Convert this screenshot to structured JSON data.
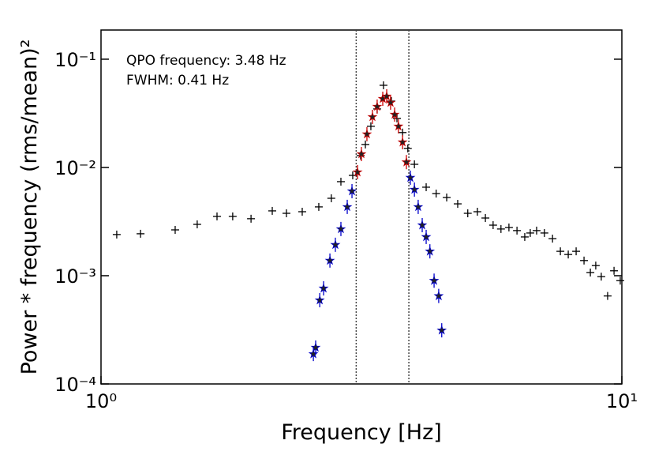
{
  "chart_data": {
    "type": "scatter",
    "xlabel": "Frequency [Hz]",
    "ylabel": "Power * frequency (rms/mean)²",
    "annotations": [
      "QPO frequency: 3.48 Hz",
      "FWHM: 0.41 Hz"
    ],
    "log_x": true,
    "log_y": true,
    "xlim": [
      1,
      10
    ],
    "ylim": [
      0.0001,
      0.186
    ],
    "xticks": [
      {
        "value": 1,
        "label": "10⁰"
      },
      {
        "value": 10,
        "label": "10¹"
      }
    ],
    "yticks": [
      {
        "value": 0.0001,
        "label": "10⁻⁴"
      },
      {
        "value": 0.001,
        "label": "10⁻³"
      },
      {
        "value": 0.01,
        "label": "10⁻²"
      },
      {
        "value": 0.1,
        "label": "10⁻¹"
      }
    ],
    "vlines": [
      3.09,
      3.9
    ],
    "series": [
      {
        "marker": "cross",
        "color": "#000000",
        "x": [
          1.072,
          1.191,
          1.388,
          1.53,
          1.67,
          1.79,
          1.941,
          2.132,
          2.27,
          2.434,
          2.619,
          2.768,
          2.888,
          3.043,
          3.151,
          3.218,
          3.297,
          3.39,
          3.486,
          3.61,
          3.7,
          3.793,
          3.882,
          3.997,
          4.21,
          4.4,
          4.61,
          4.84,
          5.06,
          5.28,
          5.47,
          5.66,
          5.86,
          6.07,
          6.29,
          6.51,
          6.67,
          6.86,
          7.1,
          7.36,
          7.62,
          7.89,
          8.17,
          8.46,
          8.7,
          8.91,
          9.13,
          9.39,
          9.66,
          9.93
        ],
        "values": [
          0.0024,
          0.00244,
          0.00265,
          0.00298,
          0.00353,
          0.00353,
          0.00336,
          0.00397,
          0.00377,
          0.0039,
          0.00432,
          0.00519,
          0.00739,
          0.00845,
          0.01287,
          0.0163,
          0.024,
          0.0347,
          0.0574,
          0.041,
          0.0284,
          0.021,
          0.015,
          0.01069,
          0.00657,
          0.00574,
          0.00528,
          0.00461,
          0.00377,
          0.0039,
          0.00341,
          0.00293,
          0.0027,
          0.00279,
          0.00261,
          0.00228,
          0.00248,
          0.00261,
          0.00248,
          0.0022,
          0.00168,
          0.00157,
          0.00168,
          0.00138,
          0.00107,
          0.00124,
          0.00098,
          0.00065,
          0.00111,
          0.0009
        ]
      },
      {
        "marker": "star",
        "color": "#0000cc",
        "x": [
          2.557,
          2.583,
          2.63,
          2.675,
          2.751,
          2.818,
          2.888,
          2.97,
          3.033,
          3.926,
          3.997,
          4.064,
          4.137,
          4.21,
          4.28,
          4.36,
          4.45,
          4.51
        ],
        "values": [
          0.000189,
          0.000217,
          0.000594,
          0.000764,
          0.00138,
          0.00193,
          0.0027,
          0.00432,
          0.00604,
          0.00804,
          0.00625,
          0.00432,
          0.00293,
          0.00228,
          0.00168,
          0.0009,
          0.00065,
          0.000313
        ]
      },
      {
        "marker": "star",
        "color": "#cc0000",
        "x": [
          3.108,
          3.162,
          3.24,
          3.32,
          3.39,
          3.475,
          3.536,
          3.597,
          3.662,
          3.724,
          3.793,
          3.858
        ],
        "values": [
          0.00904,
          0.0133,
          0.0203,
          0.0293,
          0.0365,
          0.0431,
          0.0454,
          0.0397,
          0.0308,
          0.024,
          0.0171,
          0.0112
        ]
      }
    ]
  }
}
